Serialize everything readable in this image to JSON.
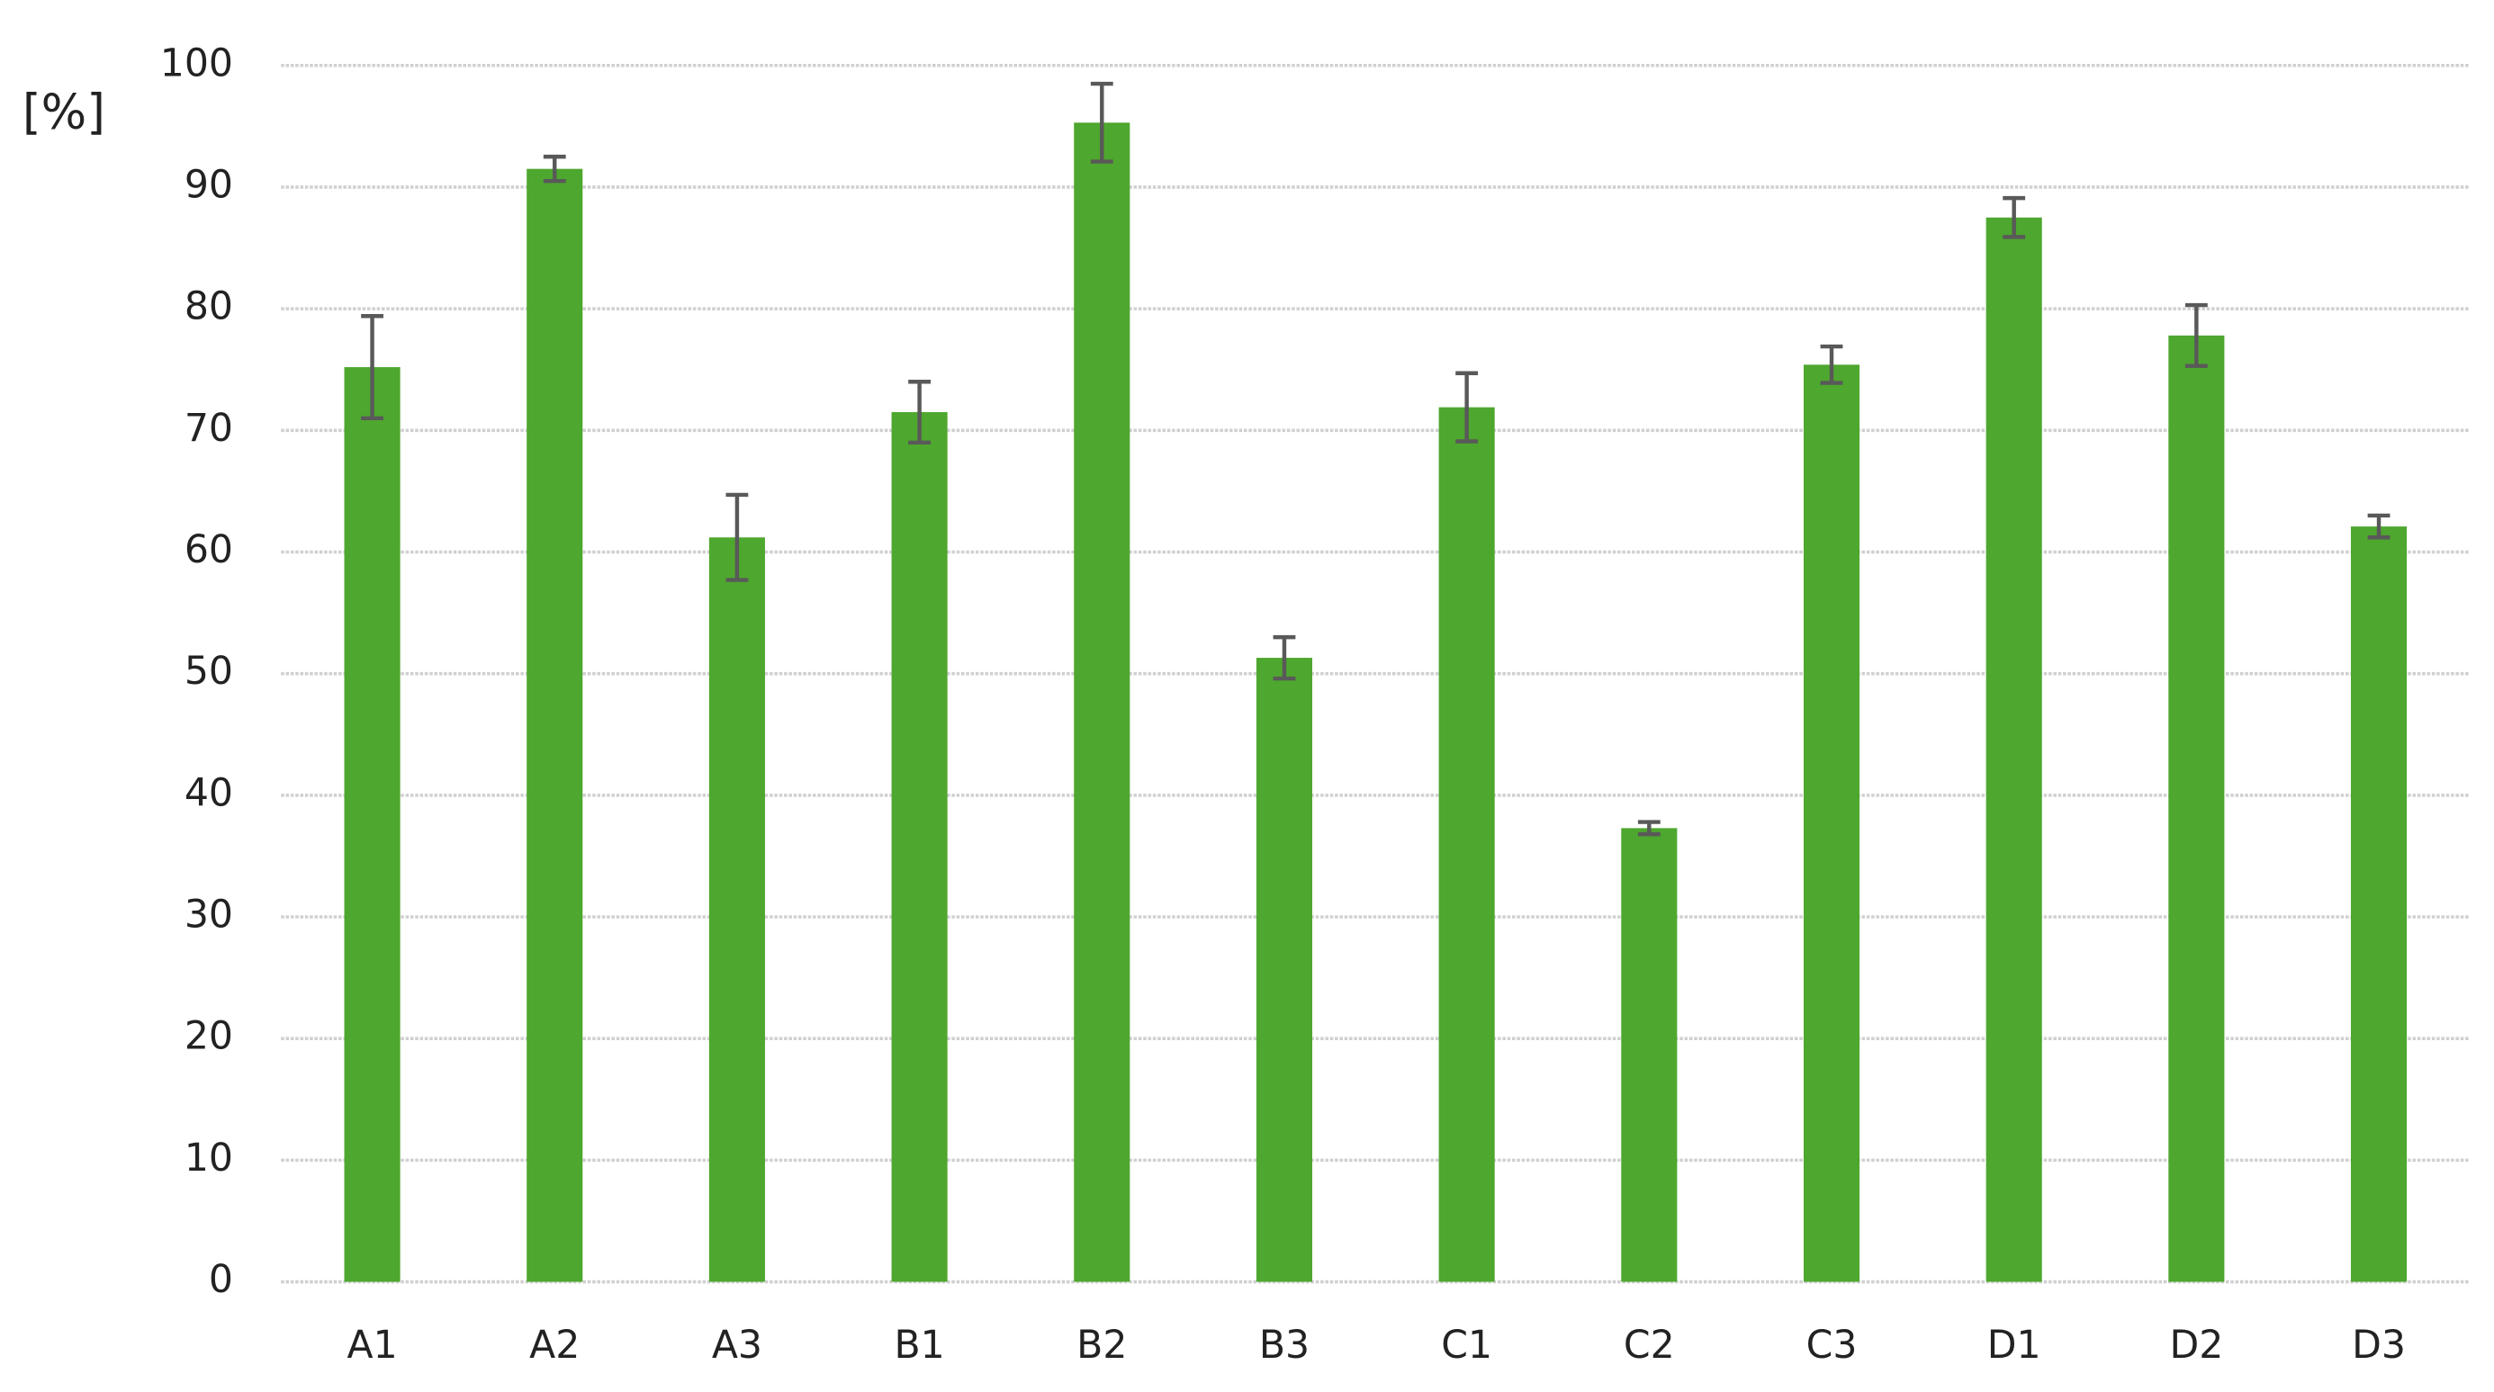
{
  "chart_data": {
    "type": "bar",
    "y_label": "[%]",
    "categories": [
      "A1",
      "A2",
      "A3",
      "B1",
      "B2",
      "B3",
      "C1",
      "C2",
      "C3",
      "D1",
      "D2",
      "D3"
    ],
    "values": [
      75.2,
      91.5,
      61.2,
      71.5,
      95.3,
      51.3,
      71.9,
      37.3,
      75.4,
      87.5,
      77.8,
      62.1
    ],
    "errors": [
      4.2,
      1.0,
      3.5,
      2.5,
      3.2,
      1.7,
      2.8,
      0.5,
      1.5,
      1.6,
      2.5,
      0.9
    ],
    "color": "#4ea72e",
    "error_color": "#595959",
    "ylim": [
      0,
      100
    ],
    "yticks": [
      0,
      10,
      20,
      30,
      40,
      50,
      60,
      70,
      80,
      90,
      100
    ],
    "grid": true
  }
}
